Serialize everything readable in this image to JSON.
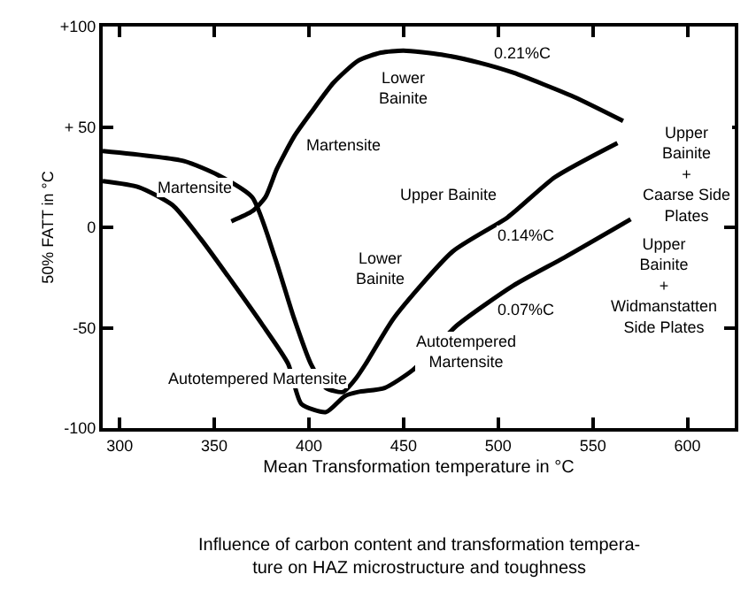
{
  "chart_data": {
    "type": "line",
    "title": "Influence of carbon content and transformation tempera-\nture on HAZ microstructure and toughness",
    "xlabel": "Mean Transformation temperature in °C",
    "ylabel": "50% FATT in °C",
    "xlim": [
      291,
      625
    ],
    "ylim": [
      -100,
      100
    ],
    "xticks": [
      300,
      350,
      400,
      450,
      500,
      550,
      600
    ],
    "yticks": [
      {
        "value": 100,
        "label": "+100"
      },
      {
        "value": 50,
        "label": "+ 50"
      },
      0,
      -50,
      -100
    ],
    "marker": "none",
    "line_style": "solid",
    "series": [
      {
        "color": "#000000",
        "x": [
          359,
          370,
          377,
          383,
          392,
          401,
          413,
          426,
          438,
          450,
          470,
          490,
          508,
          540,
          566
        ],
        "values": [
          3,
          8,
          15,
          29,
          45,
          57,
          72,
          83,
          87,
          88,
          86,
          82,
          77,
          65,
          53
        ]
      },
      {
        "color": "#000000",
        "x": [
          291,
          334,
          352,
          370,
          382,
          392,
          401,
          409,
          418,
          425,
          430,
          445,
          476,
          505,
          530,
          563
        ],
        "values": [
          38,
          33,
          26,
          15,
          -15,
          -45,
          -68,
          -80,
          -82,
          -75,
          -68,
          -45,
          -12,
          5,
          25,
          42
        ]
      },
      {
        "color": "#000000",
        "x": [
          291,
          310,
          328,
          343,
          360,
          375,
          389,
          396,
          409,
          419,
          426,
          440,
          455,
          478,
          508,
          535,
          570
        ],
        "values": [
          23,
          20,
          11,
          -6,
          -28,
          -48,
          -68,
          -88,
          -92,
          -84,
          -82,
          -80,
          -71,
          -49,
          -29,
          -15,
          4
        ]
      }
    ],
    "annotations": [
      "Martensite",
      "Martensite",
      {
        "text": "Lower\nBainite",
        "x": 450,
        "y": 69
      },
      {
        "text": "0.21%C",
        "x": 513,
        "y": 87
      },
      "Upper Bainite",
      {
        "text": "0.14%C",
        "x": 515,
        "y": -4
      },
      "Upper\nBainite\n+\nCaarse Side\nPlates",
      {
        "text": "Lower\nBainite",
        "x": 438,
        "y": -21
      },
      {
        "text": "0.07%C",
        "x": 515,
        "y": -41
      },
      "Autotempered\nMartensite",
      "Autotempered Martensite",
      "Upper\nBainite\n+\nWidmanstatten\nSide Plates"
    ]
  }
}
